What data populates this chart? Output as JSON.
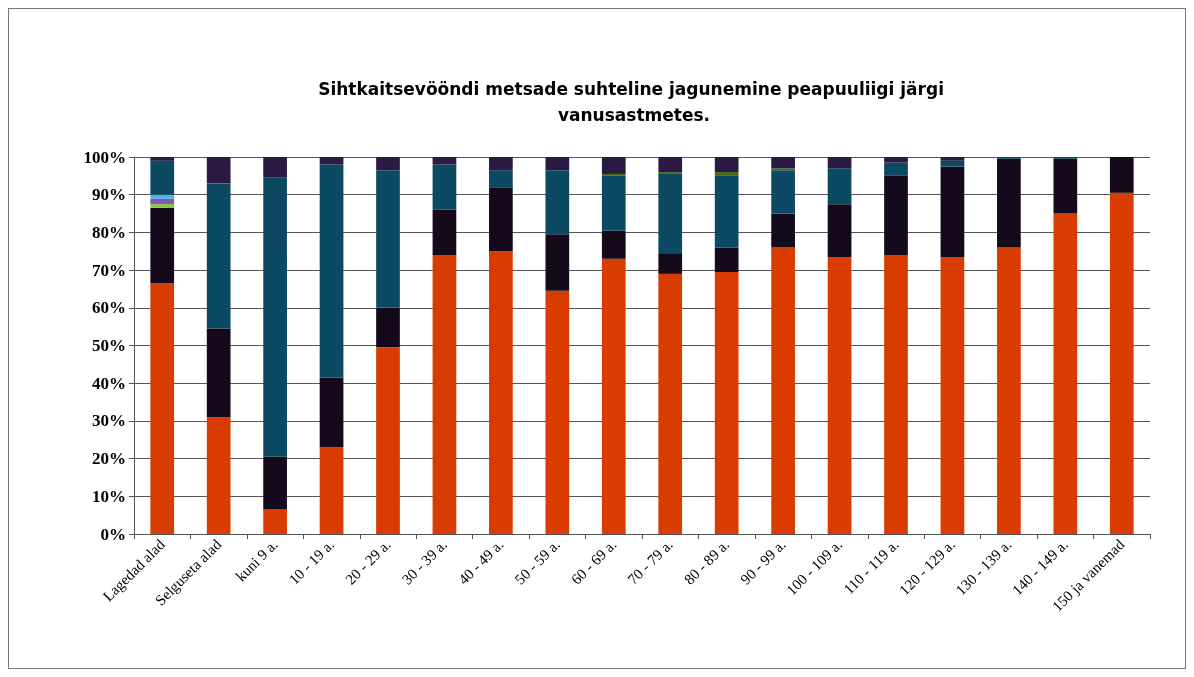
{
  "chart_data": {
    "type": "bar",
    "stacked": true,
    "title": "Sihtkaitsevööndi metsade suhteline jagunemine peapuuliigi järgi vanusastmetes.",
    "categories": [
      "Lagedad alad",
      "Selguseta alad",
      "kuni 9 a.",
      "10 - 19 a.",
      "20 - 29 a.",
      "30 - 39 a.",
      "40 - 49 a.",
      "50 - 59 a.",
      "60 - 69 a.",
      "70 - 79 a.",
      "80 - 89 a.",
      "90 - 99 a.",
      "100 - 109 a.",
      "110 - 119 a.",
      "120 - 129 a.",
      "130 - 139 a.",
      "140 - 149 a.",
      "150 ja vanemad"
    ],
    "series": [
      {
        "color": "#d83c00",
        "values": [
          66.5,
          31,
          6.5,
          23,
          49.5,
          74,
          75,
          64.5,
          73,
          69,
          69.5,
          76,
          73.5,
          74,
          73.5,
          76,
          85,
          90.5
        ]
      },
      {
        "color": "#140a1c",
        "values": [
          20,
          23.5,
          14,
          18.5,
          10.5,
          12,
          17,
          15,
          7.5,
          5.5,
          6.5,
          9,
          14,
          21,
          24,
          23.5,
          14.5,
          9.5
        ]
      },
      {
        "color": "#8cc43c",
        "values": [
          1,
          null,
          null,
          null,
          null,
          null,
          null,
          null,
          null,
          null,
          null,
          null,
          null,
          null,
          null,
          null,
          null,
          null
        ]
      },
      {
        "color": "#7a5cb0",
        "values": [
          1.5,
          null,
          null,
          null,
          null,
          null,
          null,
          null,
          null,
          null,
          null,
          null,
          null,
          null,
          null,
          null,
          null,
          null
        ]
      },
      {
        "color": "#4ab8e8",
        "values": [
          1,
          null,
          null,
          null,
          null,
          null,
          null,
          null,
          null,
          null,
          null,
          null,
          null,
          null,
          null,
          null,
          null,
          null
        ]
      },
      {
        "color": "#0c4a64",
        "values": [
          9,
          38.5,
          74,
          56.5,
          36.5,
          12,
          4.5,
          17,
          14.5,
          21,
          19,
          11.5,
          9.5,
          3.5,
          1.5,
          0.5,
          0.5,
          null
        ]
      },
      {
        "color": "#4a6a10",
        "values": [
          null,
          null,
          null,
          null,
          null,
          null,
          null,
          null,
          0.5,
          0.5,
          1,
          0.5,
          null,
          null,
          null,
          null,
          null,
          null
        ]
      },
      {
        "color": "#2a1a44",
        "values": [
          1,
          7,
          5.5,
          2,
          3.5,
          2,
          3.5,
          3.5,
          4.5,
          4,
          4,
          3,
          3,
          1.5,
          1,
          null,
          null,
          null
        ]
      }
    ],
    "ylim": [
      0,
      100
    ],
    "yticks": [
      {
        "value": 0,
        "label": "0%"
      },
      {
        "value": 10,
        "label": "10%"
      },
      {
        "value": 20,
        "label": "20%"
      },
      {
        "value": 30,
        "label": "30%"
      },
      {
        "value": 40,
        "label": "40%"
      },
      {
        "value": 50,
        "label": "50%"
      },
      {
        "value": 60,
        "label": "60%"
      },
      {
        "value": 70,
        "label": "70%"
      },
      {
        "value": 80,
        "label": "80%"
      },
      {
        "value": 90,
        "label": "90%"
      },
      {
        "value": 100,
        "label": "100%"
      }
    ],
    "grid": "y"
  }
}
